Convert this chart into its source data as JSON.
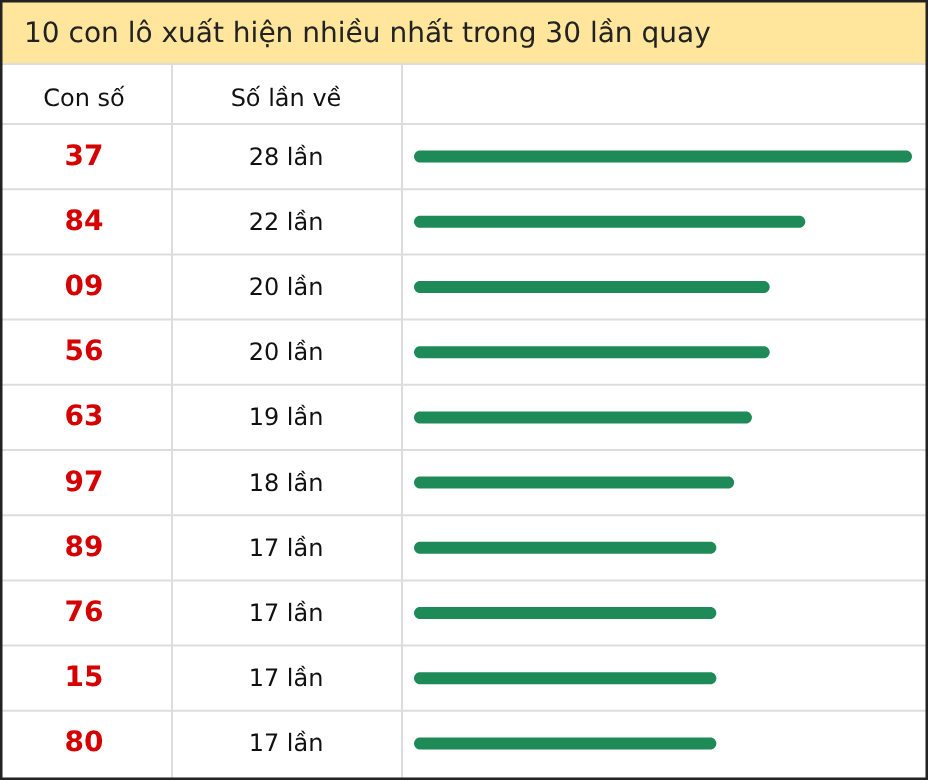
{
  "chart_data": {
    "type": "bar",
    "orientation": "horizontal",
    "title": "10 con lô xuất hiện nhiều nhất trong 30 lần quay",
    "ylabel": "Con số",
    "xlabel": "Số lần về",
    "categories": [
      "37",
      "84",
      "09",
      "56",
      "63",
      "97",
      "89",
      "76",
      "15",
      "80"
    ],
    "values": [
      28,
      22,
      20,
      20,
      19,
      18,
      17,
      17,
      17,
      17
    ],
    "value_labels": [
      "28 lần",
      "22 lần",
      "20 lần",
      "20 lần",
      "19 lần",
      "18 lần",
      "17 lần",
      "17 lần",
      "17 lần",
      "17 lần"
    ],
    "color": "#1e8a57"
  }
}
